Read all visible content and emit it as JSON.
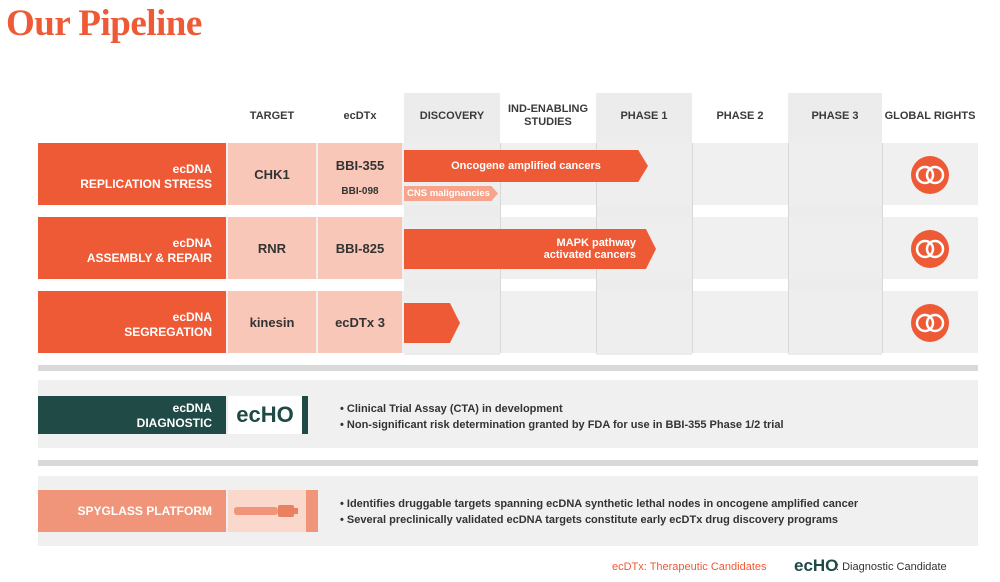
{
  "title": "Our Pipeline",
  "headers": {
    "target": "TARGET",
    "ecdtx": "ecDTx",
    "discovery": "DISCOVERY",
    "ind": "IND-ENABLING STUDIES",
    "phase1": "PHASE 1",
    "phase2": "PHASE 2",
    "phase3": "PHASE 3",
    "global": "GLOBAL RIGHTS"
  },
  "programs": [
    {
      "label_top": "ecDNA",
      "label_bottom": "REPLICATION STRESS",
      "target": "CHK1",
      "candidate": "BBI-355",
      "candidate2": "BBI-098",
      "indication": "Oncogene amplified cancers",
      "indication2": "CNS malignancies",
      "progress_phase": "PHASE 1"
    },
    {
      "label_top": "ecDNA",
      "label_bottom": "ASSEMBLY & REPAIR",
      "target": "RNR",
      "candidate": "BBI-825",
      "indication_line1": "MAPK pathway",
      "indication_line2": "activated cancers",
      "progress_phase": "PHASE 1"
    },
    {
      "label_top": "ecDNA",
      "label_bottom": "SEGREGATION",
      "target": "kinesin",
      "candidate": "ecDTx 3",
      "progress_phase": "DISCOVERY"
    }
  ],
  "diagnostic": {
    "label_top": "ecDNA",
    "label_bottom": "DIAGNOSTIC",
    "logo_text": "ecHO",
    "bullets": [
      "• Clinical Trial Assay (CTA) in development",
      "• Non-significant risk determination granted by FDA for use in BBI-355 Phase 1/2 trial"
    ]
  },
  "platform": {
    "label": "SPYGLASS PLATFORM",
    "bullets": [
      "• Identifies druggable targets spanning ecDNA synthetic lethal nodes in oncogene amplified cancer",
      "• Several preclinically validated ecDNA targets constitute early ecDTx drug discovery programs"
    ]
  },
  "footer": {
    "ecdtx_note": "ecDTx: Therapeutic Candidates",
    "echo_logo": "ecHO",
    "echo_note": ": Diagnostic Candidate"
  },
  "colors": {
    "accent": "#EE5A36",
    "pink": "#F9C7B8",
    "dark_teal": "#1F4A45"
  }
}
